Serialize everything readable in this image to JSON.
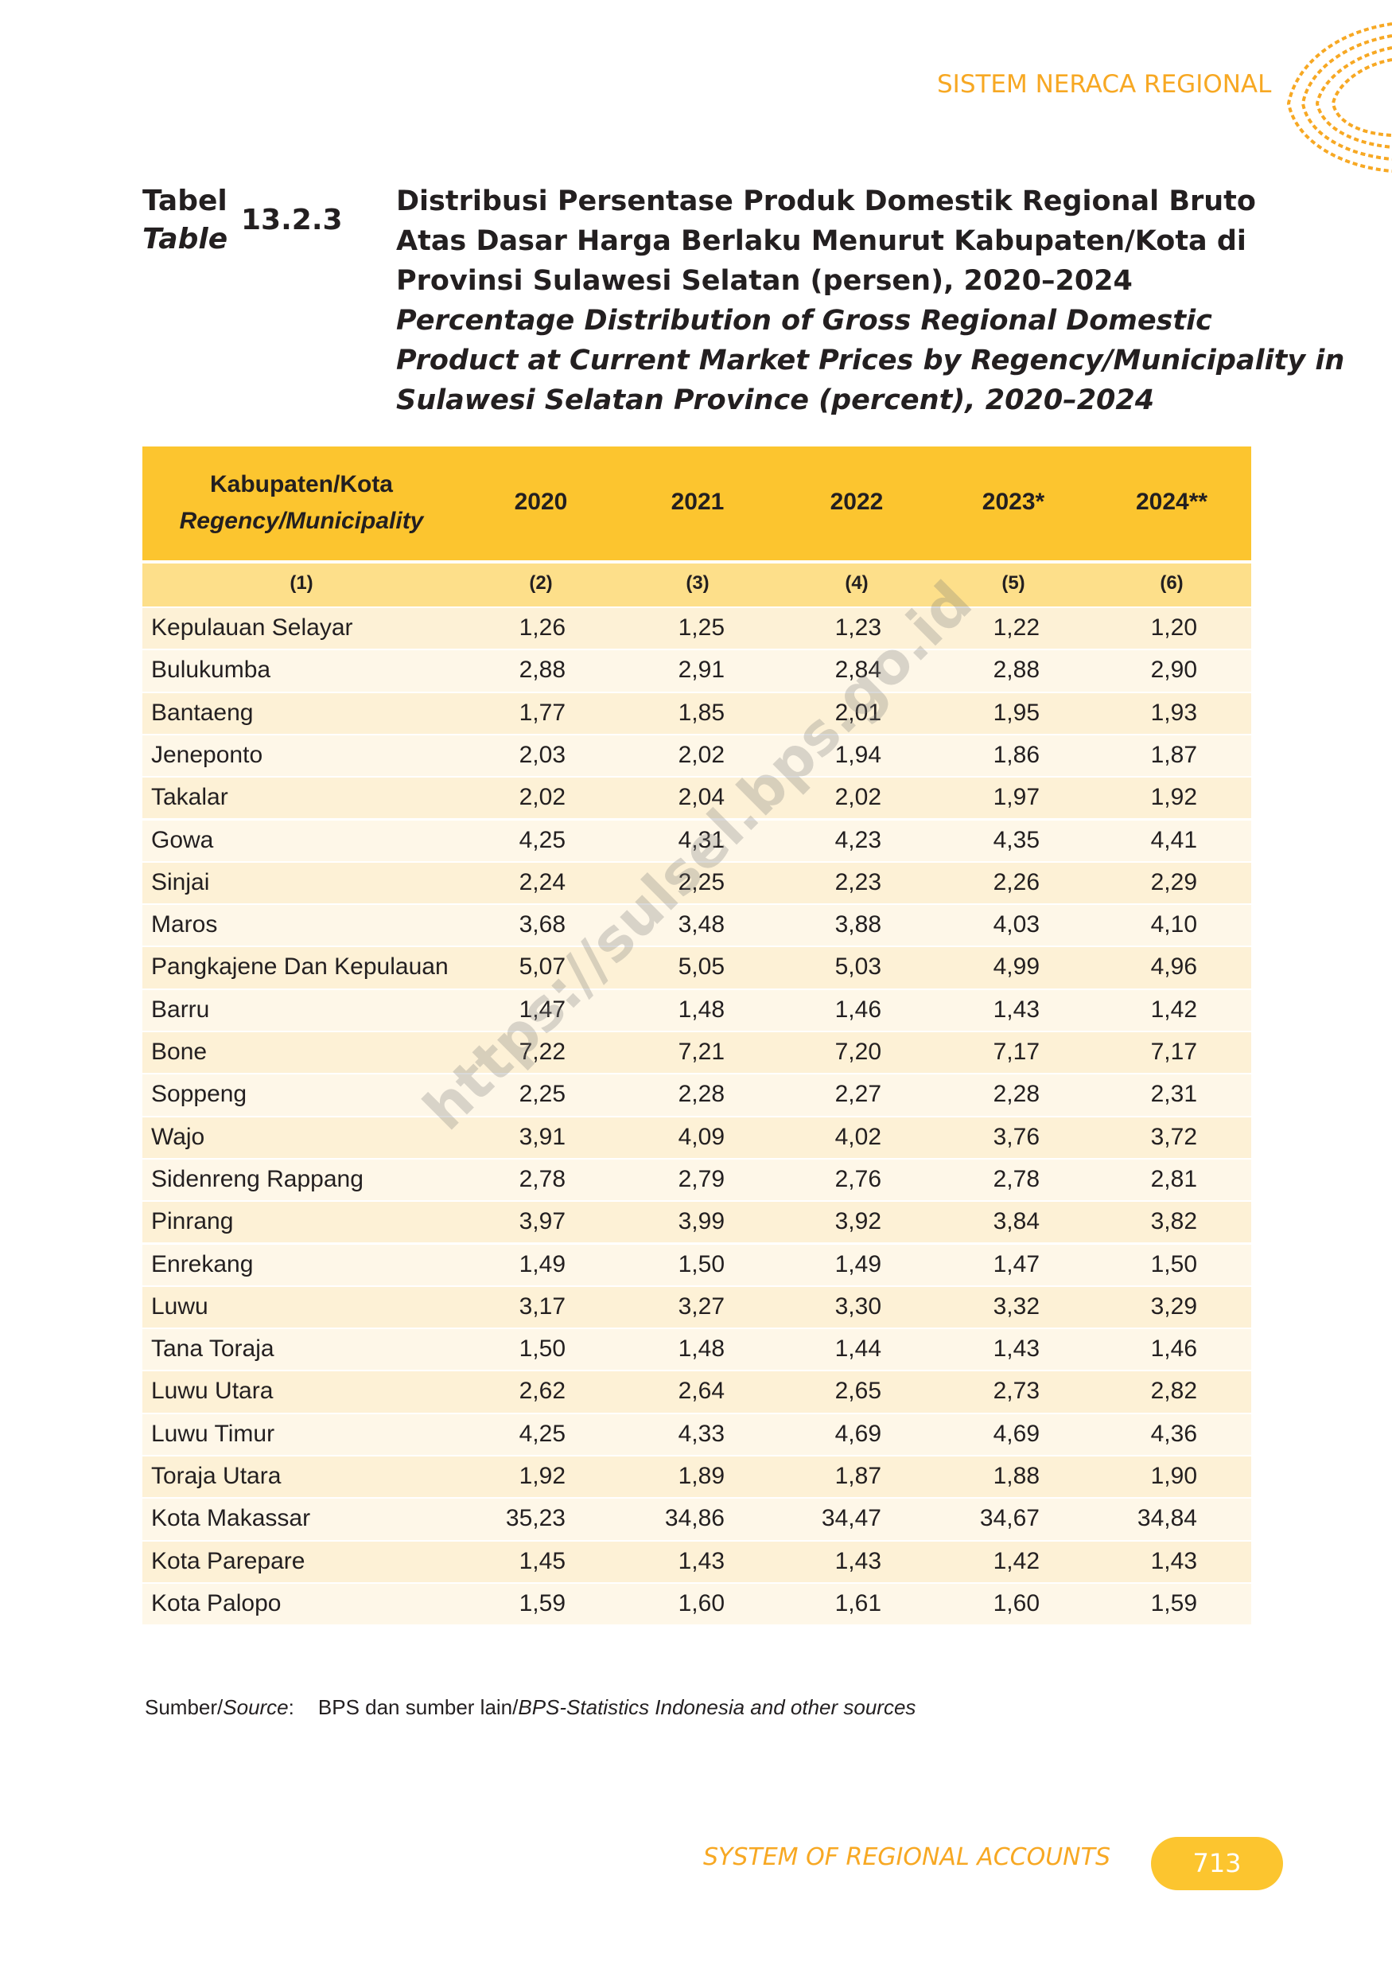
{
  "header": {
    "section": "SISTEM NERACA REGIONAL"
  },
  "table_label": {
    "id": "Tabel",
    "en": "Table",
    "number": "13.2.3"
  },
  "title_id": [
    "Distribusi Persentase Produk Domestik Regional Bruto",
    "Atas Dasar Harga Berlaku Menurut Kabupaten/Kota di",
    "Provinsi Sulawesi Selatan (persen), 2020–2024"
  ],
  "title_en": [
    "Percentage Distribution of Gross Regional Domestic",
    "Product at Current Market Prices by Regency/Municipality in",
    "Sulawesi Selatan Province (percent), 2020–2024"
  ],
  "table": {
    "first_col": {
      "id": "Kabupaten/Kota",
      "en": "Regency/Municipality"
    },
    "columns": [
      "2020",
      "2021",
      "2022",
      "2023*",
      "2024**"
    ],
    "col_numbers": [
      "(1)",
      "(2)",
      "(3)",
      "(4)",
      "(5)",
      "(6)"
    ],
    "rows": [
      [
        "Kepulauan Selayar",
        "1,26",
        "1,25",
        "1,23",
        "1,22",
        "1,20"
      ],
      [
        "Bulukumba",
        "2,88",
        "2,91",
        "2,84",
        "2,88",
        "2,90"
      ],
      [
        "Bantaeng",
        "1,77",
        "1,85",
        "2,01",
        "1,95",
        "1,93"
      ],
      [
        "Jeneponto",
        "2,03",
        "2,02",
        "1,94",
        "1,86",
        "1,87"
      ],
      [
        "Takalar",
        "2,02",
        "2,04",
        "2,02",
        "1,97",
        "1,92"
      ],
      [
        "Gowa",
        "4,25",
        "4,31",
        "4,23",
        "4,35",
        "4,41"
      ],
      [
        "Sinjai",
        "2,24",
        "2,25",
        "2,23",
        "2,26",
        "2,29"
      ],
      [
        "Maros",
        "3,68",
        "3,48",
        "3,88",
        "4,03",
        "4,10"
      ],
      [
        "Pangkajene Dan Kepulauan",
        "5,07",
        "5,05",
        "5,03",
        "4,99",
        "4,96"
      ],
      [
        "Barru",
        "1,47",
        "1,48",
        "1,46",
        "1,43",
        "1,42"
      ],
      [
        "Bone",
        "7,22",
        "7,21",
        "7,20",
        "7,17",
        "7,17"
      ],
      [
        "Soppeng",
        "2,25",
        "2,28",
        "2,27",
        "2,28",
        "2,31"
      ],
      [
        "Wajo",
        "3,91",
        "4,09",
        "4,02",
        "3,76",
        "3,72"
      ],
      [
        "Sidenreng Rappang",
        "2,78",
        "2,79",
        "2,76",
        "2,78",
        "2,81"
      ],
      [
        "Pinrang",
        "3,97",
        "3,99",
        "3,92",
        "3,84",
        "3,82"
      ],
      [
        "Enrekang",
        "1,49",
        "1,50",
        "1,49",
        "1,47",
        "1,50"
      ],
      [
        "Luwu",
        "3,17",
        "3,27",
        "3,30",
        "3,32",
        "3,29"
      ],
      [
        "Tana Toraja",
        "1,50",
        "1,48",
        "1,44",
        "1,43",
        "1,46"
      ],
      [
        "Luwu Utara",
        "2,62",
        "2,64",
        "2,65",
        "2,73",
        "2,82"
      ],
      [
        "Luwu Timur",
        "4,25",
        "4,33",
        "4,69",
        "4,69",
        "4,36"
      ],
      [
        "Toraja Utara",
        "1,92",
        "1,89",
        "1,87",
        "1,88",
        "1,90"
      ],
      [
        "Kota Makassar",
        "35,23",
        "34,86",
        "34,47",
        "34,67",
        "34,84"
      ],
      [
        "Kota Parepare",
        "1,45",
        "1,43",
        "1,43",
        "1,42",
        "1,43"
      ],
      [
        "Kota Palopo",
        "1,59",
        "1,60",
        "1,61",
        "1,60",
        "1,59"
      ]
    ]
  },
  "watermark": "https://sulsel.bps.go.id",
  "source": {
    "label_id": "Sumber/",
    "label_en": "Source",
    "separator": ":",
    "text_id": "BPS dan sumber lain/",
    "text_en": "BPS-Statistics Indonesia and other sources"
  },
  "footer": {
    "title": "SYSTEM OF REGIONAL ACCOUNTS",
    "page": "713"
  }
}
